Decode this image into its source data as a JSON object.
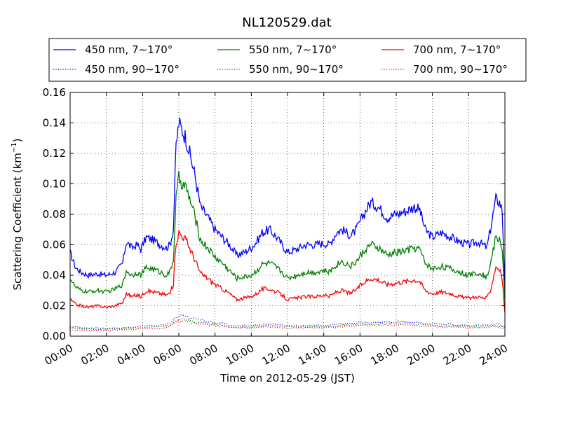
{
  "chart_data": {
    "type": "line",
    "title": "NL120529.dat",
    "xlabel": "Time on 2012-05-29 (JST)",
    "ylabel_main": "Scattering Coefficient (km",
    "ylabel_sup": "−1",
    "ylabel_tail": ")",
    "xlim": [
      0,
      24
    ],
    "ylim": [
      0,
      0.16
    ],
    "x_ticks": [
      0,
      2,
      4,
      6,
      8,
      10,
      12,
      14,
      16,
      18,
      20,
      22,
      24
    ],
    "x_tick_labels": [
      "00:00",
      "02:00",
      "04:00",
      "06:00",
      "08:00",
      "10:00",
      "12:00",
      "14:00",
      "16:00",
      "18:00",
      "20:00",
      "22:00",
      "24:00"
    ],
    "y_ticks": [
      0,
      0.02,
      0.04,
      0.06,
      0.08,
      0.1,
      0.12,
      0.14,
      0.16
    ],
    "y_tick_labels": [
      "0.00",
      "0.02",
      "0.04",
      "0.06",
      "0.08",
      "0.10",
      "0.12",
      "0.14",
      "0.16"
    ],
    "grid": true,
    "legend_position": "top",
    "series": [
      {
        "name": "450 nm, 7∼170°",
        "color": "#0000ff",
        "style": "solid",
        "x": [
          0,
          0.3,
          0.6,
          1,
          1.5,
          2,
          2.5,
          2.9,
          3.1,
          3.4,
          3.7,
          3.9,
          4.2,
          4.6,
          5,
          5.3,
          5.5,
          5.7,
          5.85,
          6,
          6.2,
          6.4,
          6.6,
          6.9,
          7.2,
          7.6,
          8,
          8.4,
          8.8,
          9.2,
          9.6,
          10,
          10.3,
          10.6,
          11,
          11.4,
          11.7,
          12,
          12.5,
          13,
          13.5,
          14,
          14.3,
          14.7,
          15,
          15.5,
          15.8,
          16,
          16.3,
          16.6,
          17,
          17.5,
          18,
          18.5,
          19,
          19.3,
          19.6,
          20,
          20.5,
          21,
          21.5,
          22,
          22.5,
          22.8,
          23,
          23.2,
          23.5,
          23.7,
          23.85,
          24
        ],
        "y": [
          0.055,
          0.045,
          0.042,
          0.04,
          0.041,
          0.04,
          0.042,
          0.048,
          0.062,
          0.058,
          0.06,
          0.057,
          0.065,
          0.063,
          0.06,
          0.058,
          0.06,
          0.07,
          0.125,
          0.14,
          0.135,
          0.13,
          0.12,
          0.105,
          0.085,
          0.078,
          0.07,
          0.065,
          0.06,
          0.053,
          0.055,
          0.058,
          0.062,
          0.068,
          0.07,
          0.065,
          0.06,
          0.055,
          0.057,
          0.06,
          0.06,
          0.061,
          0.06,
          0.068,
          0.07,
          0.066,
          0.07,
          0.075,
          0.082,
          0.088,
          0.085,
          0.078,
          0.08,
          0.082,
          0.085,
          0.083,
          0.07,
          0.065,
          0.068,
          0.065,
          0.062,
          0.06,
          0.062,
          0.06,
          0.058,
          0.07,
          0.09,
          0.088,
          0.083,
          0.033
        ]
      },
      {
        "name": "550 nm, 7∼170°",
        "color": "#008000",
        "style": "solid",
        "x": [
          0,
          0.3,
          0.6,
          1,
          1.5,
          2,
          2.5,
          2.9,
          3.1,
          3.4,
          3.7,
          3.9,
          4.2,
          4.6,
          5,
          5.3,
          5.5,
          5.7,
          5.85,
          6,
          6.2,
          6.4,
          6.6,
          6.9,
          7.2,
          7.6,
          8,
          8.4,
          8.8,
          9.2,
          9.6,
          10,
          10.3,
          10.6,
          11,
          11.4,
          11.7,
          12,
          12.5,
          13,
          13.5,
          14,
          14.3,
          14.7,
          15,
          15.5,
          15.8,
          16,
          16.3,
          16.6,
          17,
          17.5,
          18,
          18.5,
          19,
          19.3,
          19.6,
          20,
          20.5,
          21,
          21.5,
          22,
          22.5,
          22.8,
          23,
          23.2,
          23.5,
          23.7,
          23.85,
          24
        ],
        "y": [
          0.038,
          0.032,
          0.03,
          0.029,
          0.03,
          0.029,
          0.031,
          0.034,
          0.043,
          0.04,
          0.042,
          0.04,
          0.045,
          0.044,
          0.042,
          0.04,
          0.042,
          0.05,
          0.09,
          0.104,
          0.1,
          0.097,
          0.09,
          0.078,
          0.063,
          0.058,
          0.052,
          0.048,
          0.043,
          0.038,
          0.039,
          0.04,
          0.043,
          0.047,
          0.048,
          0.045,
          0.042,
          0.038,
          0.04,
          0.042,
          0.042,
          0.043,
          0.042,
          0.047,
          0.049,
          0.046,
          0.049,
          0.052,
          0.057,
          0.06,
          0.058,
          0.053,
          0.055,
          0.056,
          0.058,
          0.057,
          0.048,
          0.044,
          0.046,
          0.044,
          0.042,
          0.04,
          0.042,
          0.04,
          0.039,
          0.047,
          0.065,
          0.063,
          0.058,
          0.023
        ]
      },
      {
        "name": "700 nm, 7∼170°",
        "color": "#ff0000",
        "style": "solid",
        "x": [
          0,
          0.3,
          0.6,
          1,
          1.5,
          2,
          2.5,
          2.9,
          3.1,
          3.4,
          3.7,
          3.9,
          4.2,
          4.6,
          5,
          5.3,
          5.5,
          5.7,
          5.85,
          6,
          6.2,
          6.4,
          6.6,
          6.9,
          7.2,
          7.6,
          8,
          8.4,
          8.8,
          9.2,
          9.6,
          10,
          10.3,
          10.6,
          11,
          11.4,
          11.7,
          12,
          12.5,
          13,
          13.5,
          14,
          14.3,
          14.7,
          15,
          15.5,
          15.8,
          16,
          16.3,
          16.6,
          17,
          17.5,
          18,
          18.5,
          19,
          19.3,
          19.6,
          20,
          20.5,
          21,
          21.5,
          22,
          22.5,
          22.8,
          23,
          23.2,
          23.5,
          23.7,
          23.85,
          24
        ],
        "y": [
          0.024,
          0.021,
          0.02,
          0.019,
          0.02,
          0.019,
          0.02,
          0.022,
          0.028,
          0.026,
          0.027,
          0.026,
          0.03,
          0.029,
          0.028,
          0.027,
          0.028,
          0.034,
          0.062,
          0.068,
          0.066,
          0.063,
          0.058,
          0.05,
          0.041,
          0.038,
          0.034,
          0.031,
          0.028,
          0.024,
          0.025,
          0.026,
          0.028,
          0.031,
          0.031,
          0.029,
          0.027,
          0.024,
          0.025,
          0.026,
          0.026,
          0.027,
          0.026,
          0.029,
          0.03,
          0.028,
          0.031,
          0.033,
          0.036,
          0.038,
          0.037,
          0.034,
          0.035,
          0.036,
          0.037,
          0.036,
          0.03,
          0.028,
          0.029,
          0.028,
          0.026,
          0.025,
          0.026,
          0.025,
          0.025,
          0.03,
          0.046,
          0.044,
          0.038,
          0.015
        ]
      },
      {
        "name": "450 nm, 90∼170°",
        "color": "#0000ff",
        "style": "dotted",
        "x": [
          0,
          2,
          3,
          4,
          5,
          5.5,
          5.8,
          6,
          6.3,
          6.6,
          7,
          8,
          9,
          10,
          11,
          12,
          13,
          14,
          15,
          16,
          17,
          18,
          19,
          20,
          21,
          22,
          23,
          23.5,
          24
        ],
        "y": [
          0.006,
          0.005,
          0.0055,
          0.0065,
          0.007,
          0.008,
          0.012,
          0.013,
          0.013,
          0.012,
          0.011,
          0.009,
          0.007,
          0.007,
          0.008,
          0.007,
          0.007,
          0.007,
          0.008,
          0.009,
          0.009,
          0.0095,
          0.009,
          0.008,
          0.0075,
          0.007,
          0.007,
          0.008,
          0.006
        ]
      },
      {
        "name": "550 nm, 90∼170°",
        "color": "#008000",
        "style": "dotted",
        "x": [
          0,
          2,
          3,
          4,
          5,
          5.5,
          5.8,
          6,
          6.3,
          6.6,
          7,
          8,
          9,
          10,
          11,
          12,
          13,
          14,
          15,
          16,
          17,
          18,
          19,
          20,
          21,
          22,
          23,
          23.5,
          24
        ],
        "y": [
          0.005,
          0.0045,
          0.005,
          0.0058,
          0.006,
          0.007,
          0.01,
          0.011,
          0.011,
          0.01,
          0.009,
          0.008,
          0.006,
          0.006,
          0.007,
          0.006,
          0.006,
          0.006,
          0.007,
          0.008,
          0.008,
          0.0085,
          0.008,
          0.007,
          0.0068,
          0.0062,
          0.0065,
          0.007,
          0.0055
        ]
      },
      {
        "name": "700 nm, 90∼170°",
        "color": "#ff0000",
        "style": "dotted",
        "x": [
          0,
          2,
          3,
          4,
          5,
          5.5,
          5.8,
          6,
          6.3,
          6.6,
          7,
          8,
          9,
          10,
          11,
          12,
          13,
          14,
          15,
          16,
          17,
          18,
          19,
          20,
          21,
          22,
          23,
          23.5,
          24
        ],
        "y": [
          0.004,
          0.0038,
          0.0042,
          0.005,
          0.0052,
          0.006,
          0.009,
          0.0095,
          0.0095,
          0.009,
          0.008,
          0.007,
          0.0055,
          0.0055,
          0.006,
          0.0055,
          0.0055,
          0.0055,
          0.006,
          0.007,
          0.007,
          0.0075,
          0.007,
          0.0062,
          0.006,
          0.0055,
          0.0058,
          0.0062,
          0.005
        ]
      }
    ]
  }
}
